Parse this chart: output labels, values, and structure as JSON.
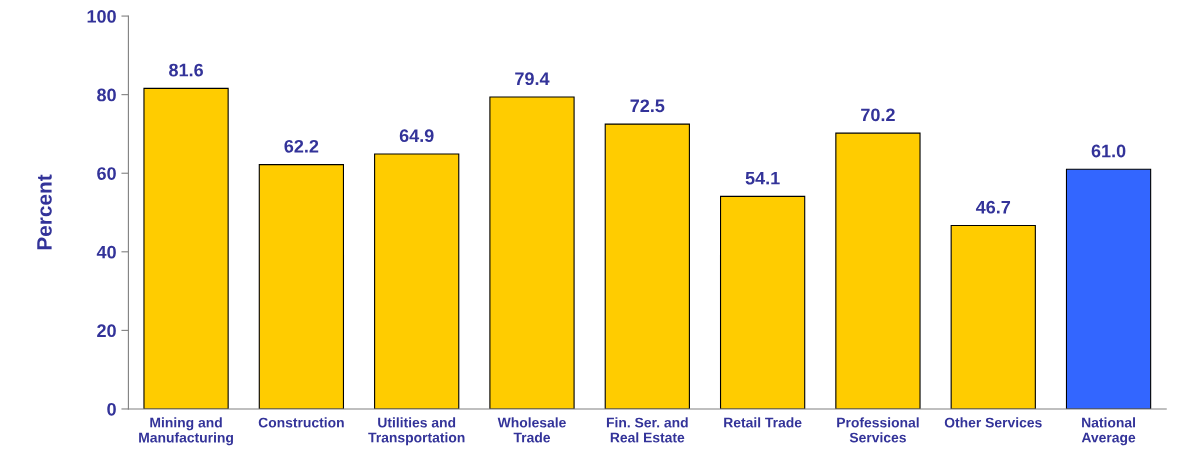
{
  "chart_data": {
    "type": "bar",
    "ylabel": "Percent",
    "categories": [
      "Mining and\nManufacturing",
      "Construction",
      "Utilities and\nTransportation",
      "Wholesale\nTrade",
      "Fin. Ser. and\nReal Estate",
      "Retail Trade",
      "Professional\nServices",
      "Other Services",
      "National\nAverage"
    ],
    "values": [
      81.6,
      62.2,
      64.9,
      79.4,
      72.5,
      54.1,
      70.2,
      46.7,
      61.0
    ],
    "colors": [
      "#ffcc00",
      "#ffcc00",
      "#ffcc00",
      "#ffcc00",
      "#ffcc00",
      "#ffcc00",
      "#ffcc00",
      "#ffcc00",
      "#3366ff"
    ],
    "value_labels": [
      "81.6",
      "62.2",
      "64.9",
      "79.4",
      "72.5",
      "54.1",
      "70.2",
      "46.7",
      "61.0"
    ],
    "ylim": [
      0,
      100
    ],
    "yticks": [
      0,
      20,
      40,
      60,
      80,
      100
    ],
    "grid": false,
    "legend": false
  }
}
